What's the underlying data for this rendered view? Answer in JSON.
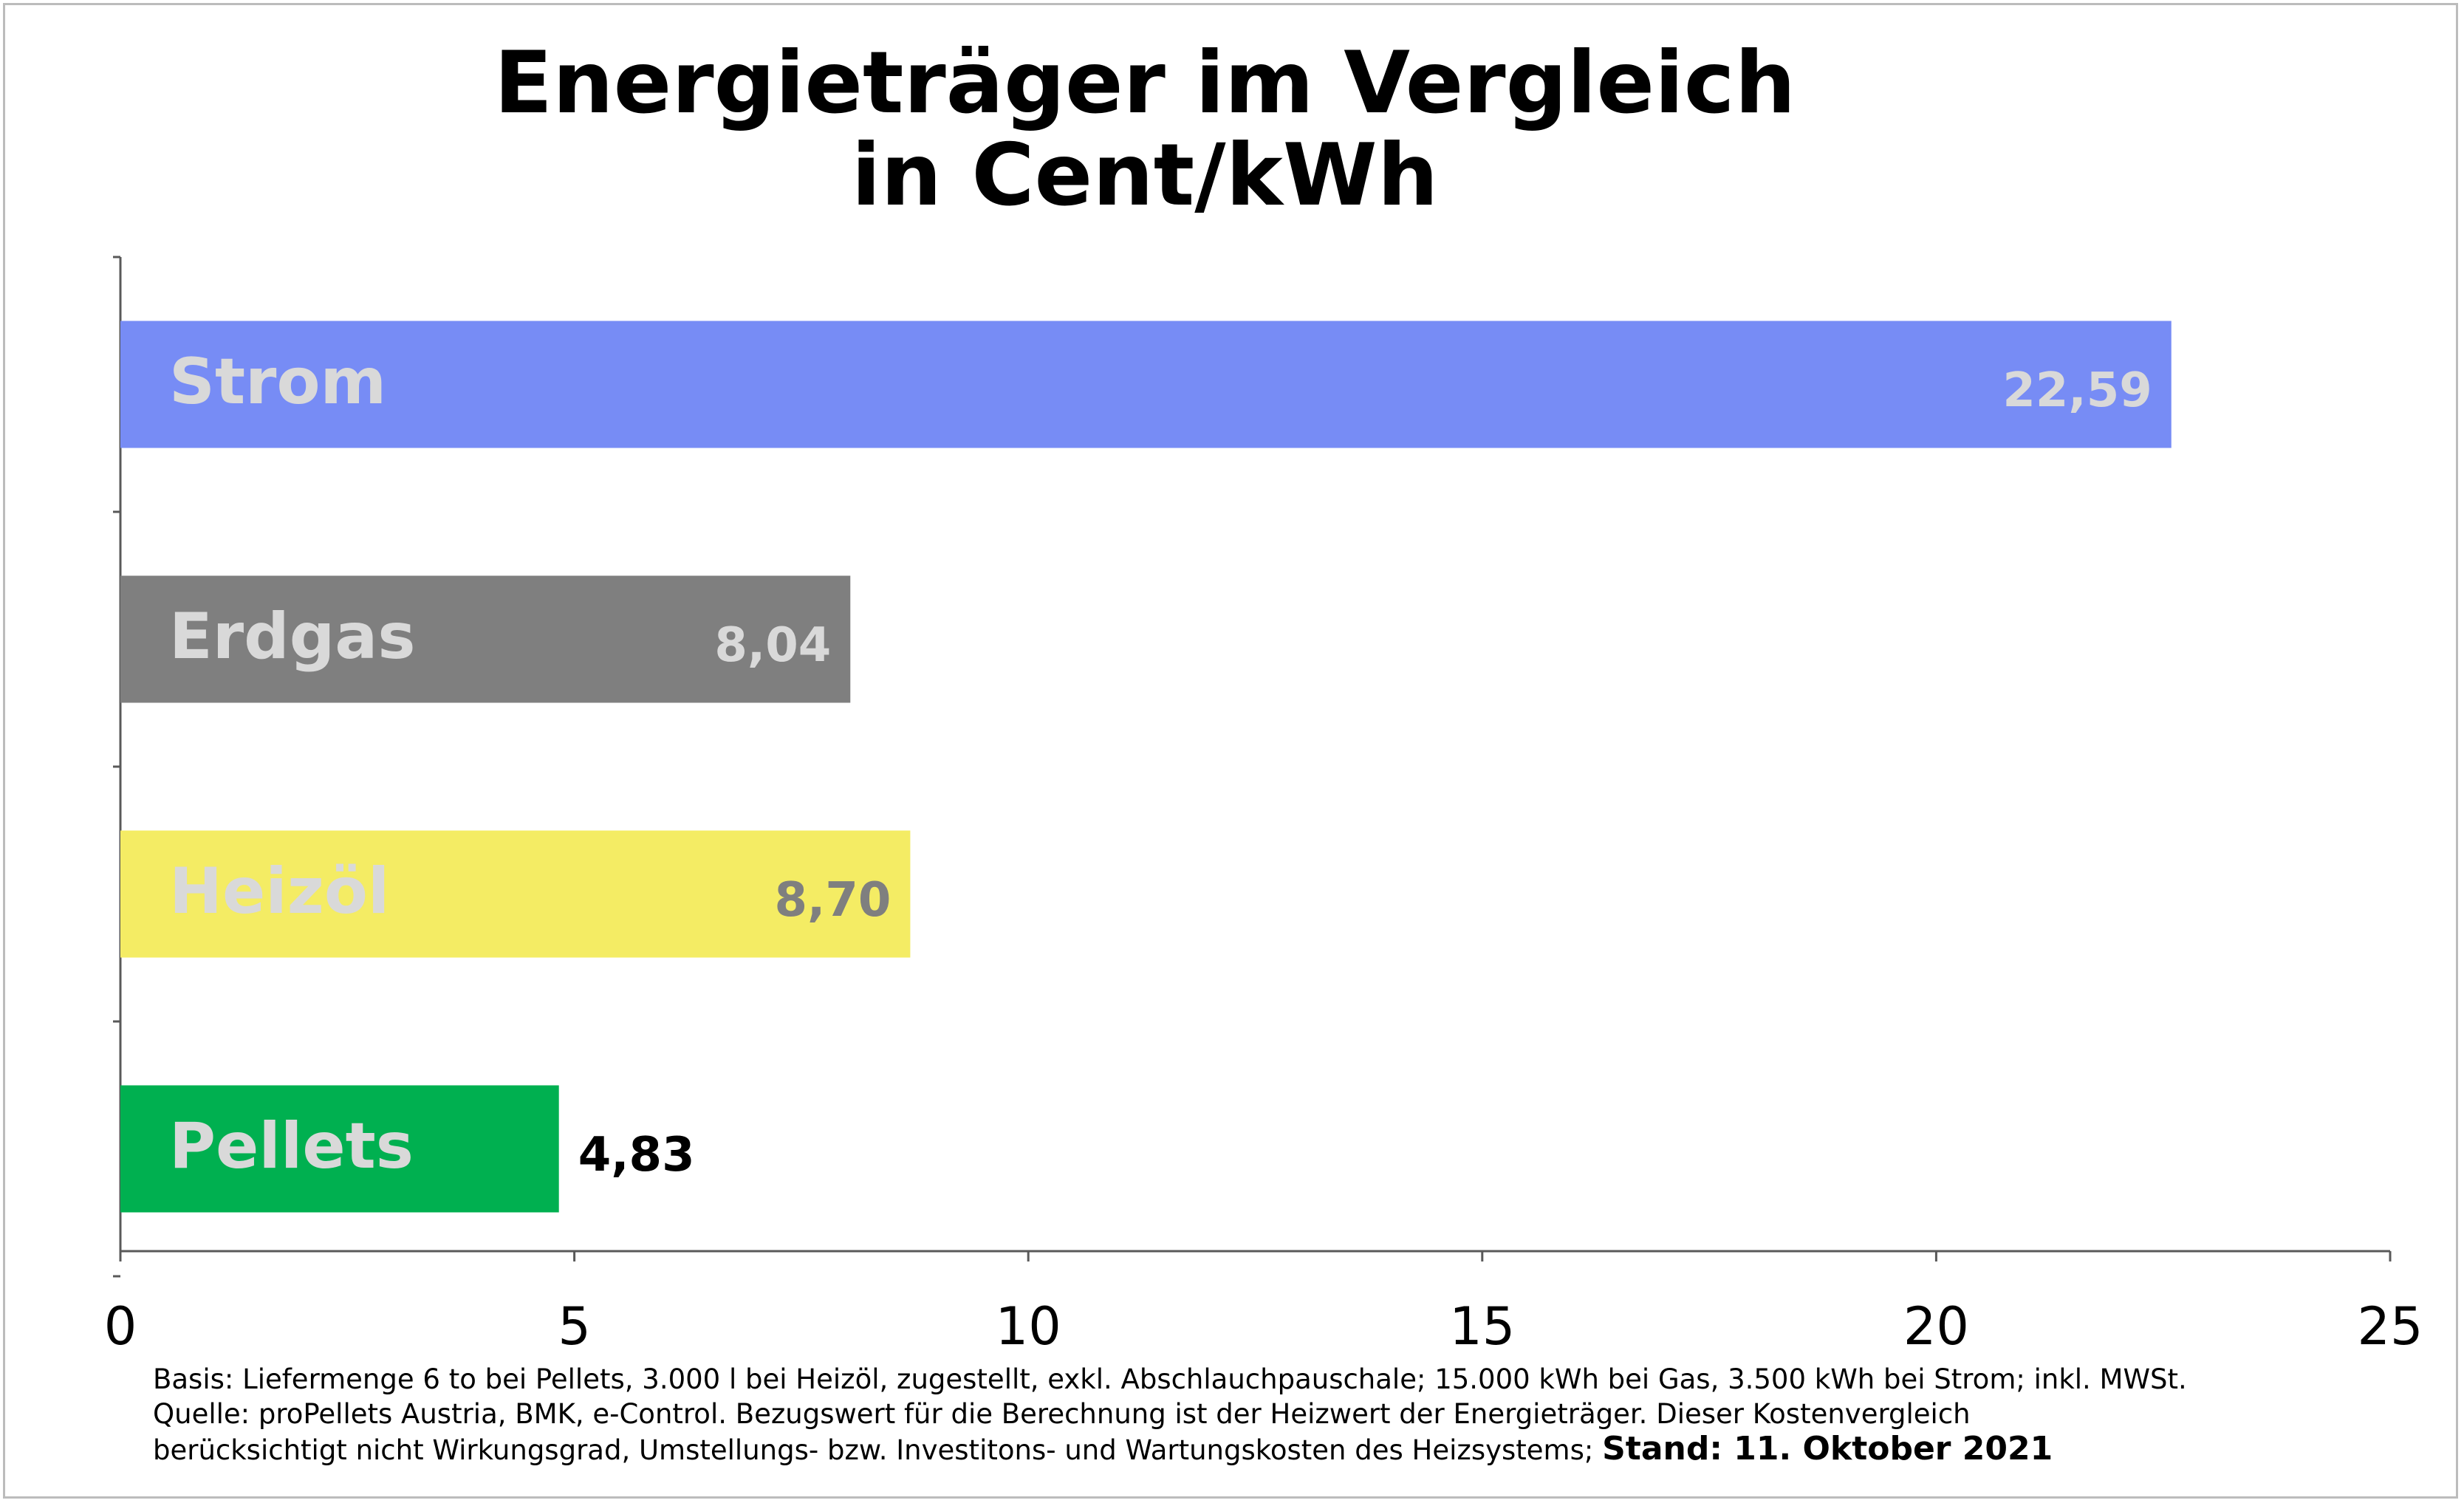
{
  "chart_data": {
    "type": "bar",
    "orientation": "horizontal",
    "title_lines": [
      "Energieträger im Vergleich",
      "in Cent/kWh"
    ],
    "categories": [
      "Strom",
      "Erdgas",
      "Heizöl",
      "Pellets"
    ],
    "values": [
      22.59,
      8.04,
      8.7,
      4.83
    ],
    "value_labels": [
      "22,59",
      "8,04",
      "8,70",
      "4,83"
    ],
    "bar_colors": [
      "#778cf5",
      "#7f7f7f",
      "#f4ec64",
      "#00b050"
    ],
    "category_label_color": "#d9d9d9",
    "value_label_colors": [
      "#d9d9d9",
      "#d9d9d9",
      "#7f7f7f",
      "#000000"
    ],
    "xlim": [
      0,
      25
    ],
    "x_ticks": [
      0,
      5,
      10,
      15,
      20,
      25
    ],
    "x_tick_labels": [
      "0",
      "5",
      "10",
      "15",
      "20",
      "25"
    ],
    "grid": false,
    "legend": "none"
  },
  "footnote": {
    "line1": "Basis: Liefermenge 6 to bei Pellets, 3.000 l bei Heizöl, zugestellt, exkl. Abschlauchpauschale; 15.000 kWh bei Gas, 3.500 kWh bei Strom; inkl. MWSt.",
    "line2": "Quelle: proPellets Austria, BMK, e-Control. Bezugswert für die Berechnung ist der Heizwert der Energieträger. Dieser Kostenvergleich",
    "line3": "berücksichtigt nicht Wirkungsgrad, Umstellungs- bzw. Investitons- und Wartungskosten des Heizsystems;",
    "stand": "Stand: 11. Oktober 2021"
  }
}
